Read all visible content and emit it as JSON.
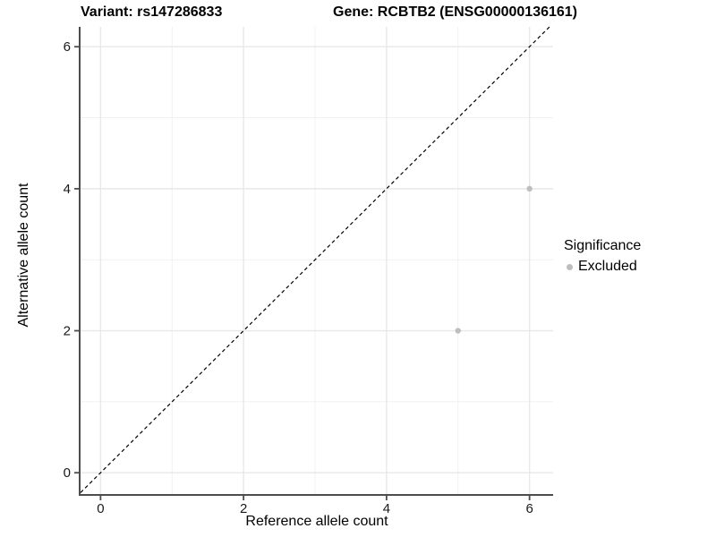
{
  "chart_data": {
    "type": "scatter",
    "titles": [
      "Variant: rs147286833",
      "Gene: RCBTB2 (ENSG00000136161)"
    ],
    "xlabel": "Reference allele count",
    "ylabel": "Alternative allele count",
    "xticks": [
      0,
      2,
      4,
      6
    ],
    "yticks": [
      0,
      2,
      4,
      6
    ],
    "minor_xticks": [
      1,
      3,
      5
    ],
    "minor_yticks": [
      1,
      3,
      5
    ],
    "xlim": [
      -0.28,
      6.33
    ],
    "ylim": [
      -0.3,
      6.28
    ],
    "grid": "major and minor gridlines on",
    "legend_position": "right",
    "series": [
      {
        "name": "Excluded",
        "color": "#bebebe",
        "points": [
          [
            6,
            4
          ],
          [
            5,
            2
          ]
        ]
      }
    ],
    "reference_line": {
      "type": "identity y=x",
      "style": "dashed",
      "color": "#000000"
    },
    "legend": {
      "title": "Significance",
      "items": [
        {
          "label": "Excluded",
          "color": "#bebebe"
        }
      ]
    }
  },
  "colors": {
    "background": "#ffffff",
    "axis_line": "#4d4d4d",
    "tick_label": "#1a1a1a",
    "grid_major": "#e8e8e8",
    "grid_minor": "#f1f1f1",
    "point": "#bebebe",
    "reference_line": "#000000"
  }
}
